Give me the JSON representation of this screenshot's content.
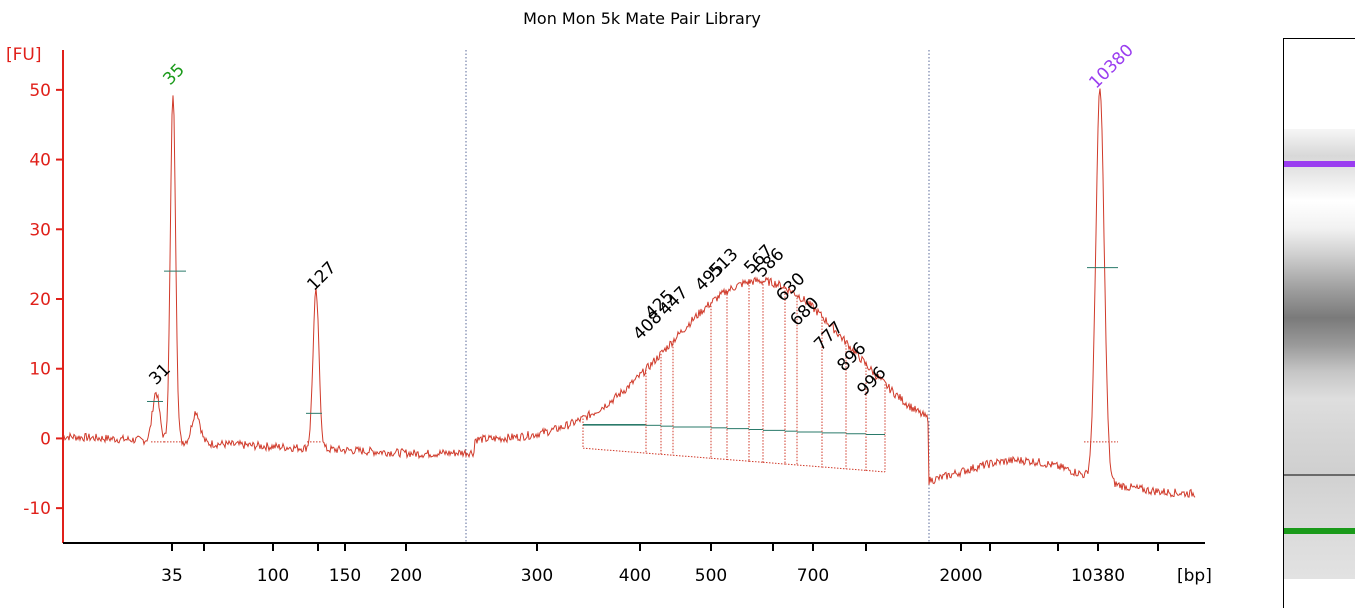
{
  "chart_data": {
    "type": "line",
    "title": "Mon Mon 5k Mate Pair Library",
    "ylabel": "[FU]",
    "xlabel": "[bp]",
    "ylim": [
      -15,
      55
    ],
    "yticks": [
      "-10",
      "0",
      "10",
      "20",
      "30",
      "40",
      "50"
    ],
    "xtick_labels": [
      "35",
      "100",
      "150",
      "200",
      "300",
      "400",
      "500",
      "700",
      "2000",
      "10380"
    ],
    "series_color": "#d03a2a",
    "marker_colors": {
      "lower": "#1a9a1a",
      "upper": "#9a3df0"
    },
    "peaks": [
      {
        "label": "31",
        "value": 7,
        "color": "#000000"
      },
      {
        "label": "35",
        "value": 50,
        "color": "#1a9a1a"
      },
      {
        "label": "127",
        "value": 20.5,
        "color": "#000000"
      },
      {
        "label": "10380",
        "value": 49.5,
        "color": "#9a3df0"
      }
    ],
    "smear_peaks": [
      {
        "label": "408",
        "value": 14
      },
      {
        "label": "425",
        "value": 17
      },
      {
        "label": "447",
        "value": 17.5
      },
      {
        "label": "495",
        "value": 21
      },
      {
        "label": "513",
        "value": 23
      },
      {
        "label": "567",
        "value": 23.5
      },
      {
        "label": "586",
        "value": 23
      },
      {
        "label": "630",
        "value": 19.5
      },
      {
        "label": "680",
        "value": 16
      },
      {
        "label": "777",
        "value": 12.5
      },
      {
        "label": "896",
        "value": 9.5
      },
      {
        "label": "996",
        "value": 6
      }
    ]
  },
  "gel": {
    "upper_marker_color": "#9a3df0",
    "lower_marker_color": "#1a9a1a"
  }
}
